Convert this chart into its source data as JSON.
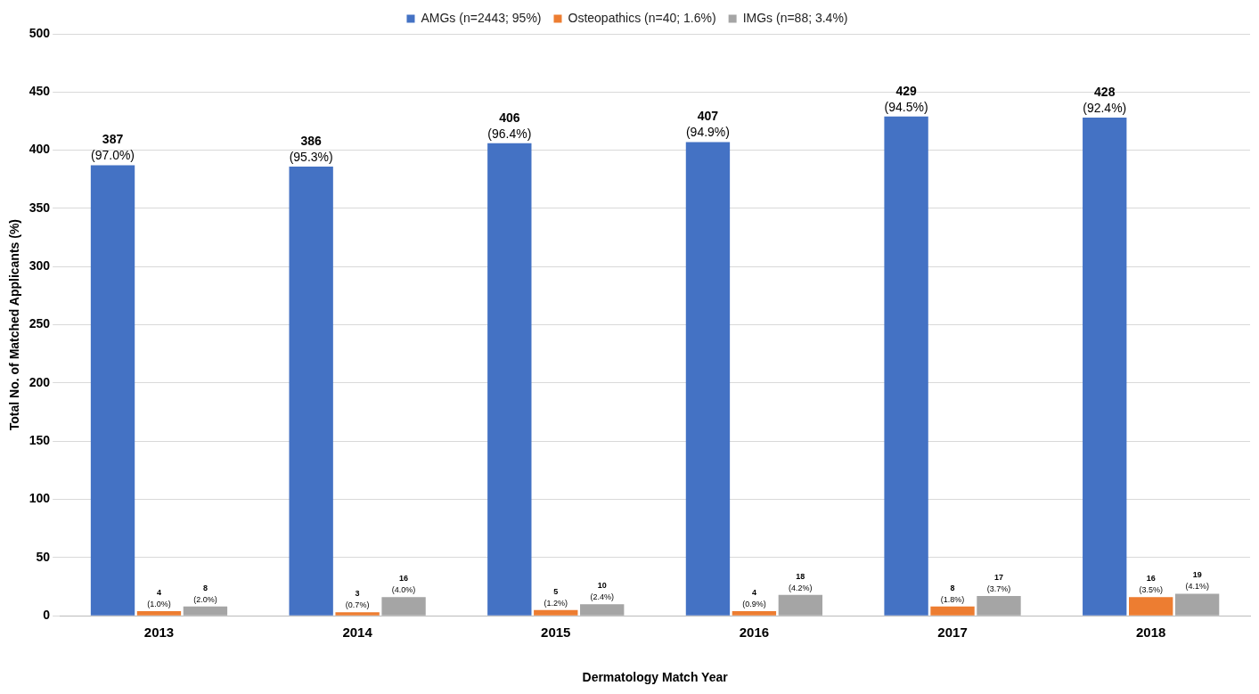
{
  "chart_data": {
    "type": "bar",
    "xlabel": "Dermatology Match Year",
    "ylabel": "Total No. of Matched Applicants (%)",
    "categories": [
      "2013",
      "2014",
      "2015",
      "2016",
      "2017",
      "2018"
    ],
    "series": [
      {
        "name": "AMGs (n=2443; 95%)",
        "color": "#4472c4",
        "values": [
          387,
          386,
          406,
          407,
          429,
          428
        ],
        "value_labels": [
          "387 (97.0%)",
          "386 (95.3%)",
          "406 (96.4%)",
          "407 (94.9%)",
          "429 (94.5%)",
          "428 (92.4%)"
        ]
      },
      {
        "name": "Osteopathics (n=40; 1.6%)",
        "color": "#ed7d31",
        "values": [
          4,
          3,
          5,
          4,
          8,
          16
        ],
        "value_labels": [
          "4 (1.0%)",
          "3 (0.7%)",
          "5 (1.2%)",
          "4 (0.9%)",
          "8 (1.8%)",
          "16 (3.5%)"
        ]
      },
      {
        "name": "IMGs (n=88; 3.4%)",
        "color": "#a5a5a5",
        "values": [
          8,
          16,
          10,
          18,
          17,
          19
        ],
        "value_labels": [
          "8 (2.0%)",
          "16 (4.0%)",
          "10 (2.4%)",
          "18 (4.2%)",
          "17 (3.7%)",
          "19 (4.1%)"
        ]
      }
    ],
    "ylim": [
      0,
      500
    ],
    "yticks": [
      0,
      50,
      100,
      150,
      200,
      250,
      300,
      350,
      400,
      450,
      500
    ],
    "grid": "y",
    "legend": "top"
  }
}
